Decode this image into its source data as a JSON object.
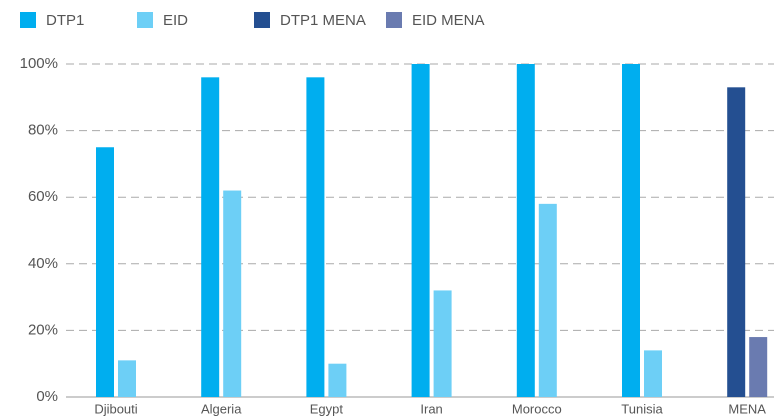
{
  "chart_data": {
    "type": "bar",
    "categories": [
      "Djibouti",
      "Algeria",
      "Egypt",
      "Iran",
      "Morocco",
      "Tunisia",
      "MENA"
    ],
    "series": [
      {
        "name": "DTP1",
        "color": "#00aeef",
        "values": [
          75,
          96,
          96,
          100,
          100,
          100,
          null
        ]
      },
      {
        "name": "EID",
        "color": "#6dcff6",
        "values": [
          11,
          62,
          10,
          32,
          58,
          14,
          null
        ]
      },
      {
        "name": "DTP1 MENA",
        "color": "#244f91",
        "values": [
          null,
          null,
          null,
          null,
          null,
          null,
          93
        ]
      },
      {
        "name": "EID MENA",
        "color": "#6a7bb0",
        "values": [
          null,
          null,
          null,
          null,
          null,
          null,
          18
        ]
      }
    ],
    "ylim": [
      0,
      100
    ],
    "yticks": [
      {
        "value": 0,
        "label": "0%"
      },
      {
        "value": 20,
        "label": "20%"
      },
      {
        "value": 40,
        "label": "40%"
      },
      {
        "value": 60,
        "label": "60%"
      },
      {
        "value": 80,
        "label": "80%"
      },
      {
        "value": 100,
        "label": "100%"
      }
    ],
    "grid": true,
    "legend": "top"
  }
}
